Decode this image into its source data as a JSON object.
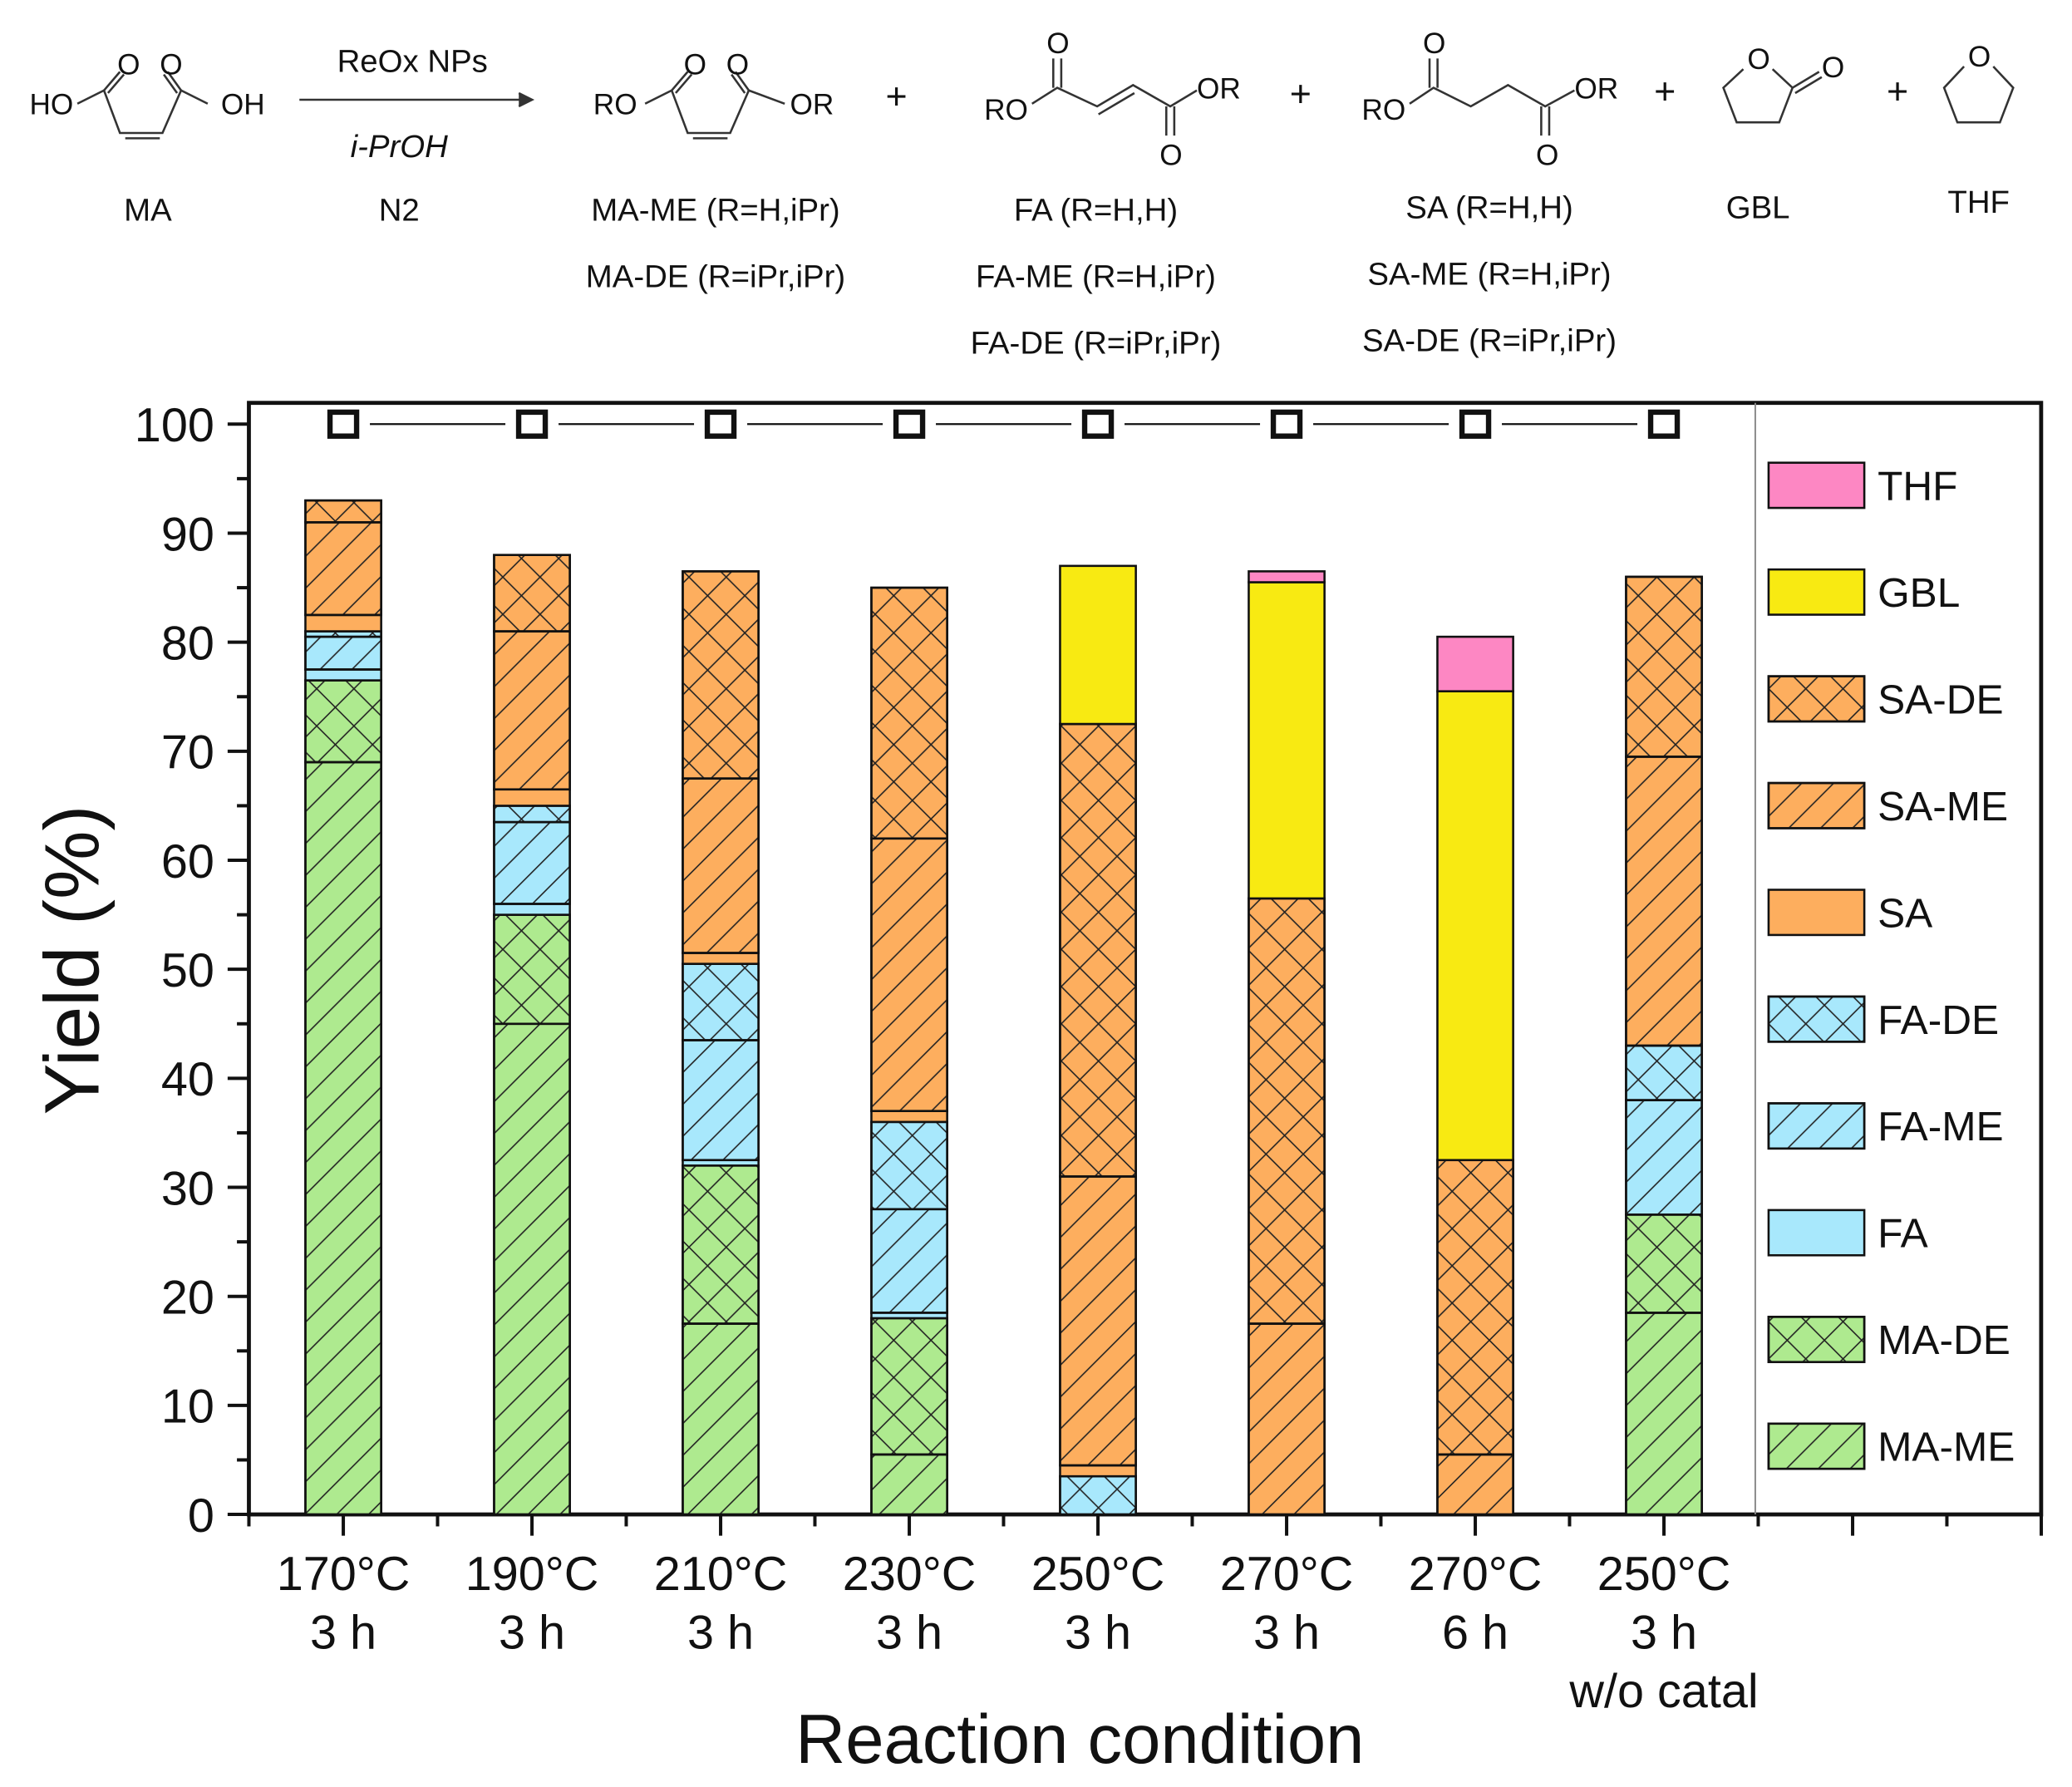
{
  "scheme": {
    "ma": {
      "left": "HO",
      "right": "OH",
      "o1": "O",
      "o2": "O",
      "label": "MA"
    },
    "arrow": {
      "top": "ReOx NPs",
      "mid": "i-PrOH",
      "bottom": "N2"
    },
    "ester_cis": {
      "left": "RO",
      "right": "OR",
      "o1": "O",
      "o2": "O",
      "labels": [
        "MA-ME (R=H,iPr)",
        "MA-DE (R=iPr,iPr)"
      ]
    },
    "fumarate": {
      "left": "RO",
      "right": "OR",
      "o1": "O",
      "o2": "O",
      "labels": [
        "FA (R=H,H)",
        "FA-ME (R=H,iPr)",
        "FA-DE (R=iPr,iPr)"
      ]
    },
    "succinate": {
      "left": "RO",
      "right": "OR",
      "o1": "O",
      "o2": "O",
      "labels": [
        "SA (R=H,H)",
        "SA-ME (R=H,iPr)",
        "SA-DE (R=iPr,iPr)"
      ]
    },
    "gbl": {
      "ring_o": "O",
      "carbonyl_o": "O",
      "label": "GBL"
    },
    "thf": {
      "ring_o": "O",
      "label": "THF"
    },
    "plus": "+"
  },
  "chart_data": {
    "type": "bar",
    "stacked": true,
    "xlabel": "Reaction condition",
    "ylabel": "Yield (%)",
    "ylim": [
      0,
      100
    ],
    "yticks": [
      0,
      10,
      20,
      30,
      40,
      50,
      60,
      70,
      80,
      90,
      100
    ],
    "categories": [
      [
        "170°C",
        "3 h"
      ],
      [
        "190°C",
        "3 h"
      ],
      [
        "210°C",
        "3 h"
      ],
      [
        "230°C",
        "3 h"
      ],
      [
        "250°C",
        "3 h"
      ],
      [
        "270°C",
        "3 h"
      ],
      [
        "270°C",
        "6 h"
      ],
      [
        "250°C",
        "3 h",
        "w/o catal"
      ]
    ],
    "series": [
      {
        "name": "MA-ME",
        "color": "#aeea8f",
        "pattern": "diagonal",
        "values": [
          69,
          45,
          17.5,
          5.5,
          0,
          0,
          0,
          18.5
        ]
      },
      {
        "name": "MA-DE",
        "color": "#aeea8f",
        "pattern": "crosshatch",
        "values": [
          7.5,
          10,
          14.5,
          12.5,
          0,
          0,
          0,
          9
        ]
      },
      {
        "name": "FA",
        "color": "#a8e8fc",
        "pattern": "none",
        "values": [
          1,
          1,
          0.5,
          0.5,
          0,
          0,
          0,
          0
        ]
      },
      {
        "name": "FA-ME",
        "color": "#a8e8fc",
        "pattern": "diagonal",
        "values": [
          3,
          7.5,
          11,
          9.5,
          0,
          0,
          0,
          10.5
        ]
      },
      {
        "name": "FA-DE",
        "color": "#a8e8fc",
        "pattern": "crosshatch",
        "values": [
          0.5,
          1.5,
          7,
          8,
          3.5,
          0,
          0,
          5
        ]
      },
      {
        "name": "SA",
        "color": "#fdae5e",
        "pattern": "none",
        "values": [
          1.5,
          1.5,
          1,
          1,
          1,
          0,
          0,
          0
        ]
      },
      {
        "name": "SA-ME",
        "color": "#fdae5e",
        "pattern": "diagonal",
        "values": [
          8.5,
          14.5,
          16,
          25,
          26.5,
          17.5,
          5.5,
          26.5
        ]
      },
      {
        "name": "SA-DE",
        "color": "#fdae5e",
        "pattern": "crosshatch",
        "values": [
          2,
          7,
          19,
          23,
          41.5,
          39,
          27,
          16.5
        ]
      },
      {
        "name": "GBL",
        "color": "#f8ea12",
        "pattern": "none",
        "values": [
          0,
          0,
          0,
          0,
          14.5,
          29,
          43,
          0
        ]
      },
      {
        "name": "THF",
        "color": "#fd87c3",
        "pattern": "none",
        "values": [
          0,
          0,
          0,
          0,
          0,
          1,
          5,
          0
        ]
      }
    ],
    "conversion": {
      "marker": "open-square",
      "values": [
        100,
        100,
        100,
        100,
        100,
        100,
        100,
        100
      ]
    },
    "legend": {
      "placement": "right",
      "order": [
        "THF",
        "GBL",
        "SA-DE",
        "SA-ME",
        "SA",
        "FA-DE",
        "FA-ME",
        "FA",
        "MA-DE",
        "MA-ME"
      ]
    },
    "grid": false
  }
}
